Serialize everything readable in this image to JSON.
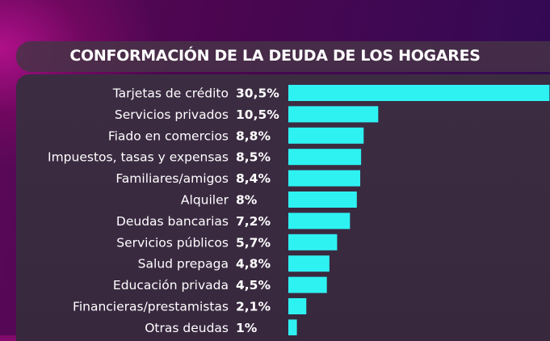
{
  "chart_data": {
    "type": "bar",
    "orientation": "horizontal",
    "title": "CONFORMACIÓN DE LA DEUDA DE LOS HOGARES",
    "categories": [
      "Tarjetas de crédito",
      "Servicios privados",
      "Fiado en comercios",
      "Impuestos, tasas y expensas",
      "Familiares/amigos",
      "Alquiler",
      "Deudas bancarias",
      "Servicios públicos",
      "Salud prepaga",
      "Educación privada",
      "Financieras/prestamistas",
      "Otras deudas"
    ],
    "values": [
      30.5,
      10.5,
      8.8,
      8.5,
      8.4,
      8,
      7.2,
      5.7,
      4.8,
      4.5,
      2.1,
      1
    ],
    "value_labels": [
      "30,5%",
      "10,5%",
      "8,8%",
      "8,5%",
      "8,4%",
      "8%",
      "7,2%",
      "5,7%",
      "4,8%",
      "4,5%",
      "2,1%",
      "1%"
    ],
    "unit": "%",
    "grid": false,
    "bar_color": "#2ef2f2"
  }
}
